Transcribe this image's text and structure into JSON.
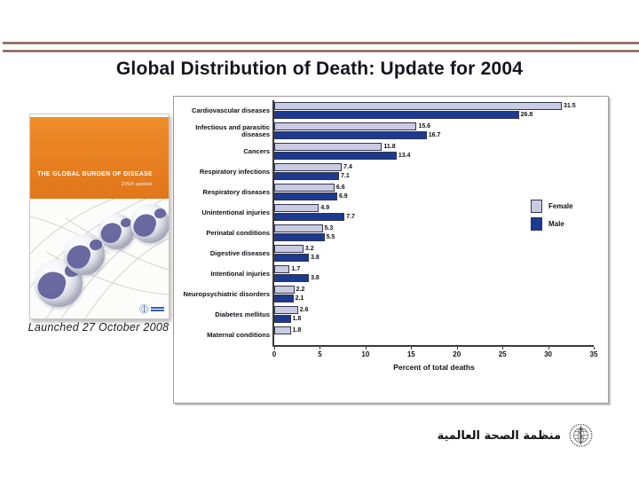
{
  "slide": {
    "title": "Global Distribution of Death: Update for 2004"
  },
  "book": {
    "cover_title": "THE GLOBAL BURDEN OF DISEASE",
    "cover_subtitle": "2004 update",
    "caption": "Launched 27 October 2008"
  },
  "footer": {
    "org_name_arabic": "منظمة الصحة العالمية"
  },
  "chart_data": {
    "type": "bar",
    "orientation": "horizontal",
    "categories": [
      "Cardiovascular diseases",
      "Infectious and parasitic diseases",
      "Cancers",
      "Respiratory infections",
      "Respiratory diseases",
      "Unintentional injuries",
      "Perinatal conditions",
      "Digestive diseases",
      "Intentional injuries",
      "Neuropsychiatric disorders",
      "Diabetes mellitus",
      "Maternal conditions"
    ],
    "series": [
      {
        "name": "Female",
        "color": "#c9cbe2",
        "values": [
          31.5,
          15.6,
          11.8,
          7.4,
          6.6,
          4.9,
          5.3,
          3.2,
          1.7,
          2.2,
          2.6,
          1.8
        ]
      },
      {
        "name": "Male",
        "color": "#1c3a8f",
        "values": [
          26.8,
          16.7,
          13.4,
          7.1,
          6.9,
          7.7,
          5.5,
          3.8,
          3.8,
          2.1,
          1.8,
          null
        ]
      }
    ],
    "xlabel": "Percent of total deaths",
    "xlim": [
      0,
      35
    ],
    "xticks": [
      0,
      5,
      10,
      15,
      20,
      25,
      30,
      35
    ],
    "grid": false,
    "legend_position": "right",
    "value_labels": true
  }
}
